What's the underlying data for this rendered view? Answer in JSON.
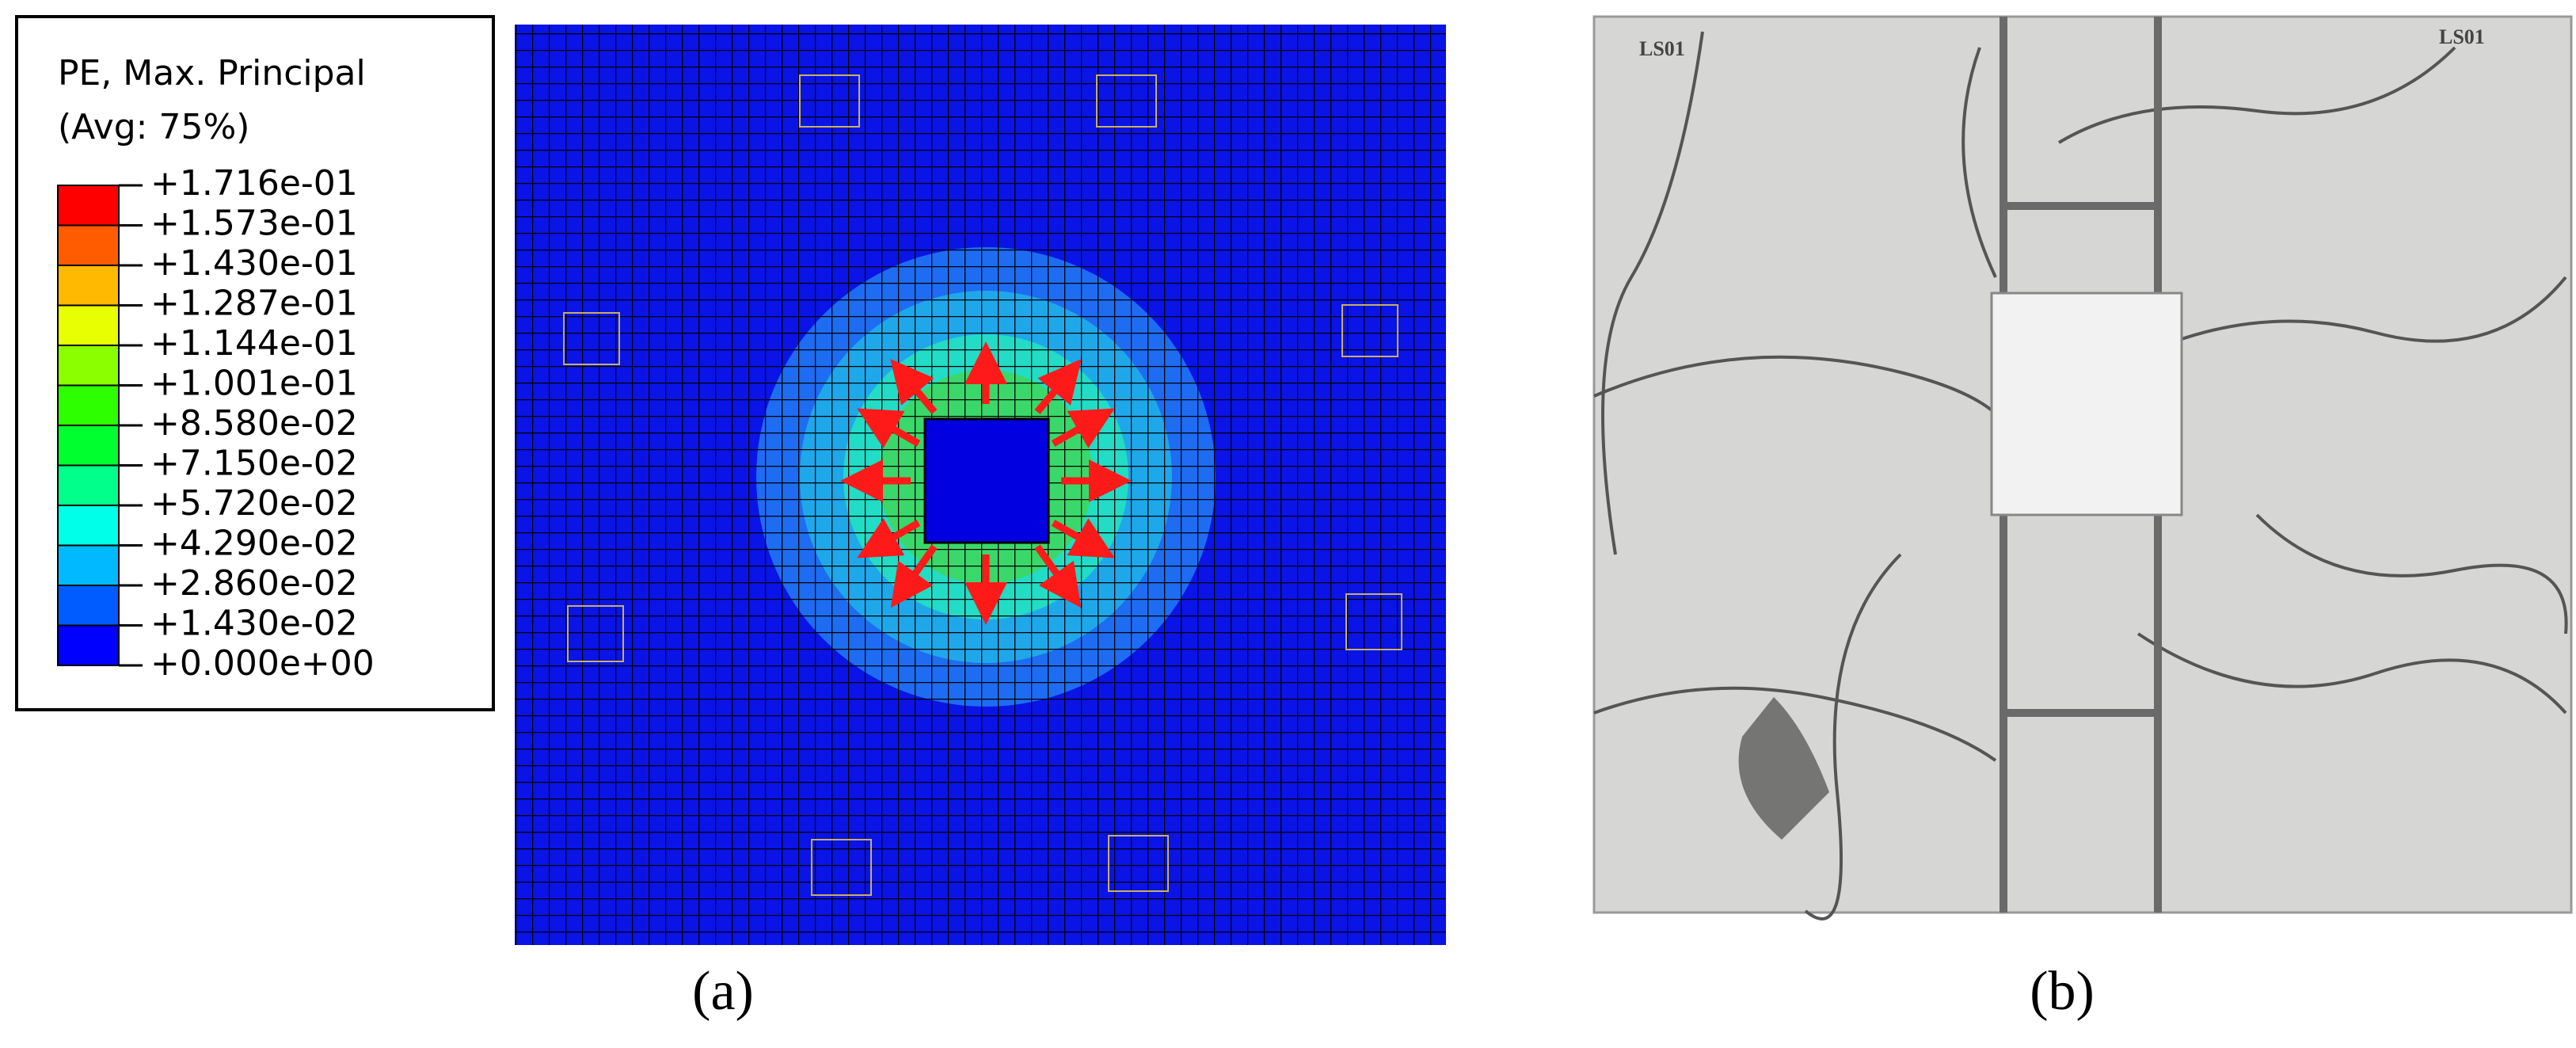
{
  "figure_a": {
    "legend": {
      "title": "PE, Max. Principal",
      "subtitle": "(Avg: 75%)",
      "labels": [
        "+1.716e-01",
        "+1.573e-01",
        "+1.430e-01",
        "+1.287e-01",
        "+1.144e-01",
        "+1.001e-01",
        "+8.580e-02",
        "+7.150e-02",
        "+5.720e-02",
        "+4.290e-02",
        "+2.860e-02",
        "+1.430e-02",
        "+0.000e+00"
      ],
      "colors": [
        "#ff0000",
        "#ff5c00",
        "#ffb900",
        "#e7ff00",
        "#8bff00",
        "#2dff00",
        "#00ff2e",
        "#00ff8b",
        "#00ffe8",
        "#00b9ff",
        "#005cff",
        "#0000ff"
      ]
    },
    "caption": "(a)"
  },
  "figure_b": {
    "marks": [
      "LS01",
      "LS01"
    ],
    "caption": "(b)"
  }
}
